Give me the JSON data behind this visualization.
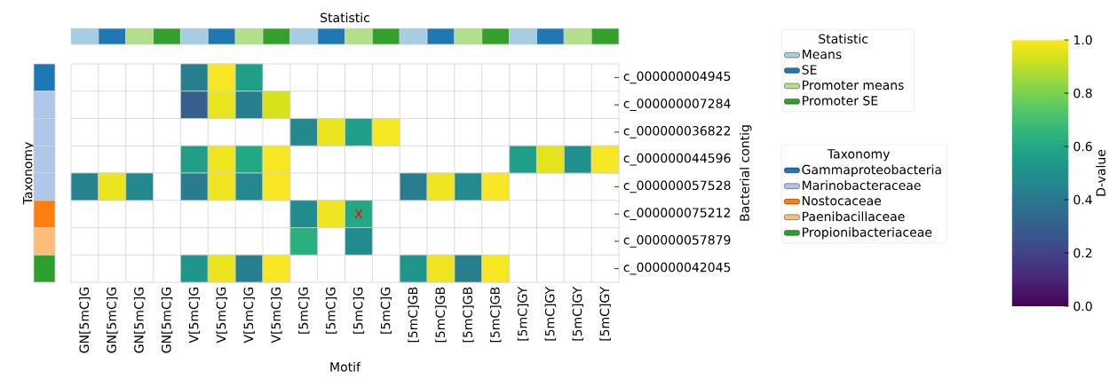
{
  "chart_data": [
    {
      "type": "heatmap",
      "xlabel": "Motif",
      "ylabel": "Bacterial contig",
      "clabel": "D-value",
      "categories": [
        "GN[5mC]G",
        "GN[5mC]G",
        "GN[5mC]G",
        "GN[5mC]G",
        "V[5mC]G",
        "V[5mC]G",
        "V[5mC]G",
        "V[5mC]G",
        "[5mC]G",
        "[5mC]G",
        "[5mC]G",
        "[5mC]G",
        "[5mC]GB",
        "[5mC]GB",
        "[5mC]GB",
        "[5mC]GB",
        "[5mC]GY",
        "[5mC]GY",
        "[5mC]GY",
        "[5mC]GY"
      ],
      "y_categories": [
        "c_000000004945",
        "c_000000007284",
        "c_000000036822",
        "c_000000044596",
        "c_000000057528",
        "c_000000075212",
        "c_000000057879",
        "c_000000042045"
      ],
      "cells": [
        [
          null,
          null,
          null,
          null,
          0.43,
          0.99,
          0.56,
          null,
          null,
          null,
          null,
          null,
          null,
          null,
          null,
          null,
          null,
          null,
          null,
          null
        ],
        [
          null,
          null,
          null,
          null,
          0.3,
          0.97,
          0.43,
          0.94,
          null,
          null,
          null,
          null,
          null,
          null,
          null,
          null,
          null,
          null,
          null,
          null
        ],
        [
          null,
          null,
          null,
          null,
          null,
          null,
          null,
          null,
          0.47,
          0.97,
          0.56,
          0.99,
          null,
          null,
          null,
          null,
          null,
          null,
          null,
          null
        ],
        [
          null,
          null,
          null,
          null,
          0.56,
          0.98,
          0.6,
          0.99,
          null,
          null,
          null,
          null,
          null,
          null,
          null,
          null,
          0.56,
          0.96,
          0.5,
          0.99
        ],
        [
          0.44,
          0.97,
          0.47,
          null,
          0.41,
          0.98,
          0.47,
          0.99,
          null,
          null,
          null,
          null,
          0.42,
          0.98,
          0.48,
          0.99,
          null,
          null,
          null,
          null
        ],
        [
          null,
          null,
          null,
          null,
          null,
          null,
          null,
          null,
          0.48,
          0.98,
          0.6,
          null,
          null,
          null,
          null,
          null,
          null,
          null,
          null,
          null
        ],
        [
          null,
          null,
          null,
          null,
          null,
          null,
          null,
          null,
          0.63,
          null,
          0.48,
          null,
          null,
          null,
          null,
          null,
          null,
          null,
          null,
          null
        ],
        [
          null,
          null,
          null,
          null,
          0.52,
          0.97,
          0.43,
          0.99,
          null,
          null,
          null,
          null,
          0.52,
          0.98,
          0.43,
          0.99,
          null,
          null,
          null,
          null
        ]
      ],
      "cell_labels": [
        [
          null,
          null,
          null,
          null,
          null,
          null,
          null,
          null,
          null,
          null,
          null,
          null,
          null,
          null,
          null,
          null,
          null,
          null,
          null,
          null
        ],
        [
          null,
          null,
          null,
          null,
          null,
          null,
          null,
          null,
          null,
          null,
          null,
          null,
          null,
          null,
          null,
          null,
          null,
          null,
          null,
          null
        ],
        [
          null,
          null,
          null,
          null,
          null,
          null,
          null,
          null,
          null,
          null,
          null,
          null,
          null,
          null,
          null,
          null,
          null,
          null,
          null,
          null
        ],
        [
          null,
          null,
          null,
          null,
          null,
          null,
          null,
          null,
          null,
          null,
          null,
          null,
          null,
          null,
          null,
          null,
          null,
          null,
          null,
          null
        ],
        [
          null,
          null,
          null,
          null,
          null,
          null,
          null,
          null,
          null,
          null,
          null,
          null,
          null,
          null,
          null,
          null,
          null,
          null,
          null,
          null
        ],
        [
          null,
          null,
          null,
          null,
          null,
          null,
          null,
          null,
          null,
          null,
          "X",
          null,
          null,
          null,
          null,
          null,
          null,
          null,
          null,
          null
        ],
        [
          null,
          null,
          null,
          null,
          null,
          null,
          null,
          null,
          null,
          null,
          null,
          null,
          null,
          null,
          null,
          null,
          null,
          null,
          null,
          null
        ],
        [
          null,
          null,
          null,
          null,
          null,
          null,
          null,
          null,
          null,
          null,
          null,
          null,
          null,
          null,
          null,
          null,
          null,
          null,
          null,
          null
        ]
      ],
      "clim": [
        0,
        1
      ],
      "cticks": [
        {
          "value": 0,
          "label": "0.0"
        },
        {
          "value": 0.2,
          "label": "0.2"
        },
        {
          "value": 0.4,
          "label": "0.4"
        },
        {
          "value": 0.6,
          "label": "0.6"
        },
        {
          "value": 0.8,
          "label": "0.8"
        },
        {
          "value": 1,
          "label": "1.0"
        }
      ]
    },
    {
      "type": "other",
      "title": "Statistic",
      "legend_title": "Statistic",
      "series": [
        {
          "name": "Means",
          "color": "#a6cee3"
        },
        {
          "name": "SE",
          "color": "#1f78b4"
        },
        {
          "name": "Promoter means",
          "color": "#b2df8a"
        },
        {
          "name": "Promoter SE",
          "color": "#33a02c"
        }
      ],
      "colors": [
        "#a6cee3",
        "#1f78b4",
        "#b2df8a",
        "#33a02c",
        "#a6cee3",
        "#1f78b4",
        "#b2df8a",
        "#33a02c",
        "#a6cee3",
        "#1f78b4",
        "#b2df8a",
        "#33a02c",
        "#a6cee3",
        "#1f78b4",
        "#b2df8a",
        "#33a02c",
        "#a6cee3",
        "#1f78b4",
        "#b2df8a",
        "#33a02c"
      ]
    },
    {
      "type": "other",
      "ylabel": "Taxonomy",
      "legend_title": "Taxonomy",
      "series": [
        {
          "name": "Gammaproteobacteria",
          "color": "#1f77b4"
        },
        {
          "name": "Marinobacteraceae",
          "color": "#aec7e8"
        },
        {
          "name": "Nostocaceae",
          "color": "#ff7f0e"
        },
        {
          "name": "Paenibacillaceae",
          "color": "#ffbb78"
        },
        {
          "name": "Propionibacteriaceae",
          "color": "#2ca02c"
        }
      ],
      "colors": [
        "#1f77b4",
        "#aec7e8",
        "#aec7e8",
        "#aec7e8",
        "#aec7e8",
        "#ff7f0e",
        "#ffbb78",
        "#2ca02c"
      ]
    }
  ]
}
